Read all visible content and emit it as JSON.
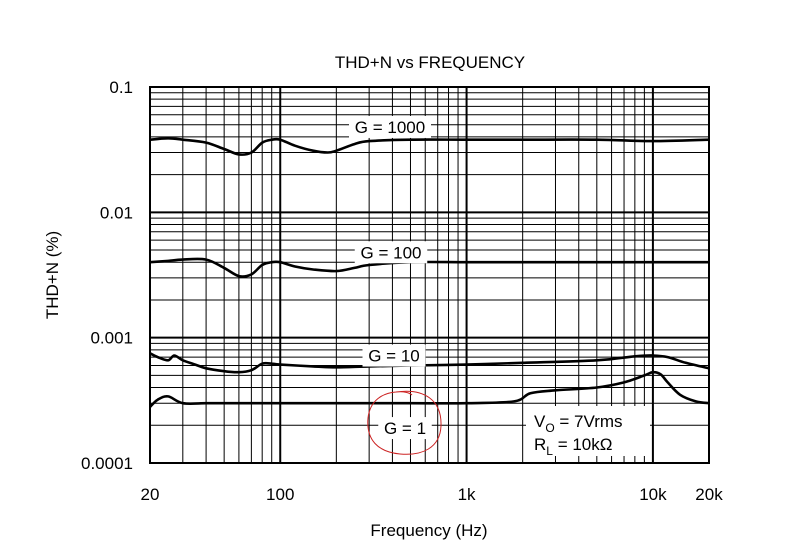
{
  "chart_data": {
    "type": "line",
    "title": "THD+N vs FREQUENCY",
    "xlabel": "Frequency (Hz)",
    "ylabel": "THD+N (%)",
    "xscale": "log",
    "yscale": "log",
    "xlim": [
      20,
      20000
    ],
    "ylim": [
      0.0001,
      0.1
    ],
    "grid": true,
    "xticks": [
      {
        "value": 20,
        "label": "20"
      },
      {
        "value": 100,
        "label": "100"
      },
      {
        "value": 1000,
        "label": "1k"
      },
      {
        "value": 10000,
        "label": "10k"
      },
      {
        "value": 20000,
        "label": "20k"
      }
    ],
    "yticks": [
      {
        "value": 0.1,
        "label": "0.1"
      },
      {
        "value": 0.01,
        "label": "0.01"
      },
      {
        "value": 0.001,
        "label": "0.001"
      },
      {
        "value": 0.0001,
        "label": "0.0001"
      }
    ],
    "series": [
      {
        "name": "G = 1000",
        "x": [
          20,
          25,
          30,
          40,
          50,
          60,
          70,
          80,
          90,
          100,
          120,
          150,
          180,
          200,
          250,
          300,
          500,
          1000,
          2000,
          5000,
          10000,
          20000
        ],
        "y": [
          0.038,
          0.039,
          0.038,
          0.036,
          0.032,
          0.029,
          0.03,
          0.036,
          0.038,
          0.038,
          0.034,
          0.031,
          0.03,
          0.031,
          0.035,
          0.037,
          0.038,
          0.038,
          0.038,
          0.038,
          0.037,
          0.038
        ]
      },
      {
        "name": "G = 100",
        "x": [
          20,
          25,
          30,
          40,
          50,
          60,
          70,
          80,
          90,
          100,
          120,
          150,
          200,
          250,
          300,
          500,
          1000,
          2000,
          5000,
          10000,
          20000
        ],
        "y": [
          0.004,
          0.0041,
          0.0042,
          0.0042,
          0.0036,
          0.0031,
          0.0032,
          0.0038,
          0.004,
          0.004,
          0.0037,
          0.0035,
          0.0034,
          0.0036,
          0.0038,
          0.004,
          0.004,
          0.004,
          0.004,
          0.004,
          0.004
        ]
      },
      {
        "name": "G = 10",
        "x": [
          20,
          22,
          25,
          27,
          30,
          35,
          40,
          50,
          60,
          70,
          80,
          90,
          100,
          150,
          200,
          300,
          500,
          1000,
          2000,
          5000,
          8000,
          10000,
          12000,
          15000,
          20000
        ],
        "y": [
          0.00075,
          0.0007,
          0.00066,
          0.00072,
          0.00066,
          0.00061,
          0.00057,
          0.00054,
          0.00053,
          0.00055,
          0.00062,
          0.00062,
          0.00061,
          0.00059,
          0.00058,
          0.00059,
          0.0006,
          0.00061,
          0.00063,
          0.00066,
          0.00071,
          0.00072,
          0.0007,
          0.00063,
          0.00057
        ]
      },
      {
        "name": "G = 1",
        "x": [
          20,
          22,
          25,
          30,
          40,
          50,
          70,
          100,
          200,
          500,
          1000,
          1800,
          2200,
          3000,
          5000,
          7000,
          9000,
          10000,
          11000,
          12000,
          14000,
          17000,
          20000
        ],
        "y": [
          0.00028,
          0.00032,
          0.00034,
          0.0003,
          0.0003,
          0.0003,
          0.0003,
          0.0003,
          0.0003,
          0.0003,
          0.0003,
          0.00031,
          0.00036,
          0.00038,
          0.0004,
          0.00044,
          0.0005,
          0.00053,
          0.00051,
          0.00044,
          0.00035,
          0.00031,
          0.0003
        ]
      }
    ],
    "annotations": {
      "vo_prefix": "V",
      "vo_sub": "O",
      "vo_suffix": " = 7Vrms",
      "rl_prefix": "R",
      "rl_sub": "L",
      "rl_suffix": " = 10kΩ"
    },
    "highlight": {
      "target": "G = 1",
      "shape": "hand-drawn circle",
      "color": "#cc2222"
    }
  }
}
